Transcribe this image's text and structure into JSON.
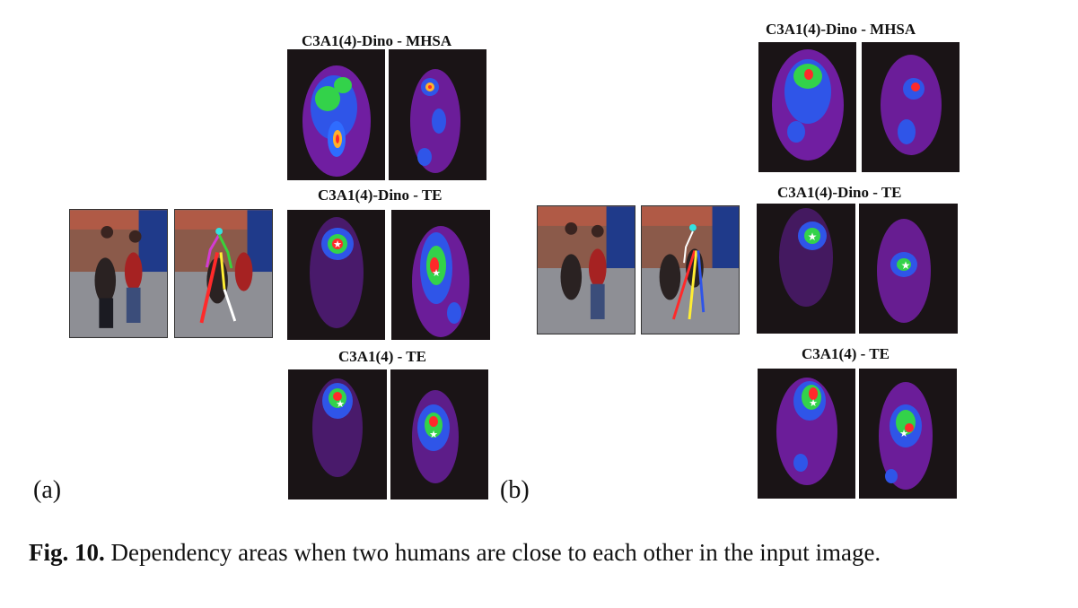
{
  "panel_a": {
    "label": "(a)",
    "titles": {
      "mhsa": "C3A1(4)-Dino - MHSA",
      "te_dino": "C3A1(4)-Dino - TE",
      "te": "C3A1(4) - TE"
    }
  },
  "panel_b": {
    "label": "(b)",
    "titles": {
      "mhsa": "C3A1(4)-Dino - MHSA",
      "te_dino": "C3A1(4)-Dino - TE",
      "te": "C3A1(4) - TE"
    }
  },
  "caption": {
    "fig_label": "Fig. 10.",
    "text": " Dependency areas when two humans are close to each other in the input image."
  },
  "colors": {
    "heat_low": "#6a1f9e",
    "heat_mid": "#2f6cff",
    "heat_high": "#33d24a",
    "heat_peak": "#ff2a2a",
    "keypoint_star": "#ffffff"
  }
}
